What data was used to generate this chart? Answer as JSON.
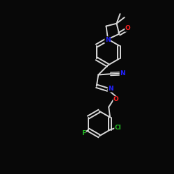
{
  "bg_color": "#080808",
  "bond_color": "#d8d8d8",
  "bond_width": 1.4,
  "atom_colors": {
    "N": "#2222ff",
    "O": "#ff2222",
    "Cl": "#22bb22",
    "F": "#22bb22",
    "C": "#d8d8d8"
  },
  "figsize": [
    2.5,
    2.5
  ],
  "dpi": 100
}
